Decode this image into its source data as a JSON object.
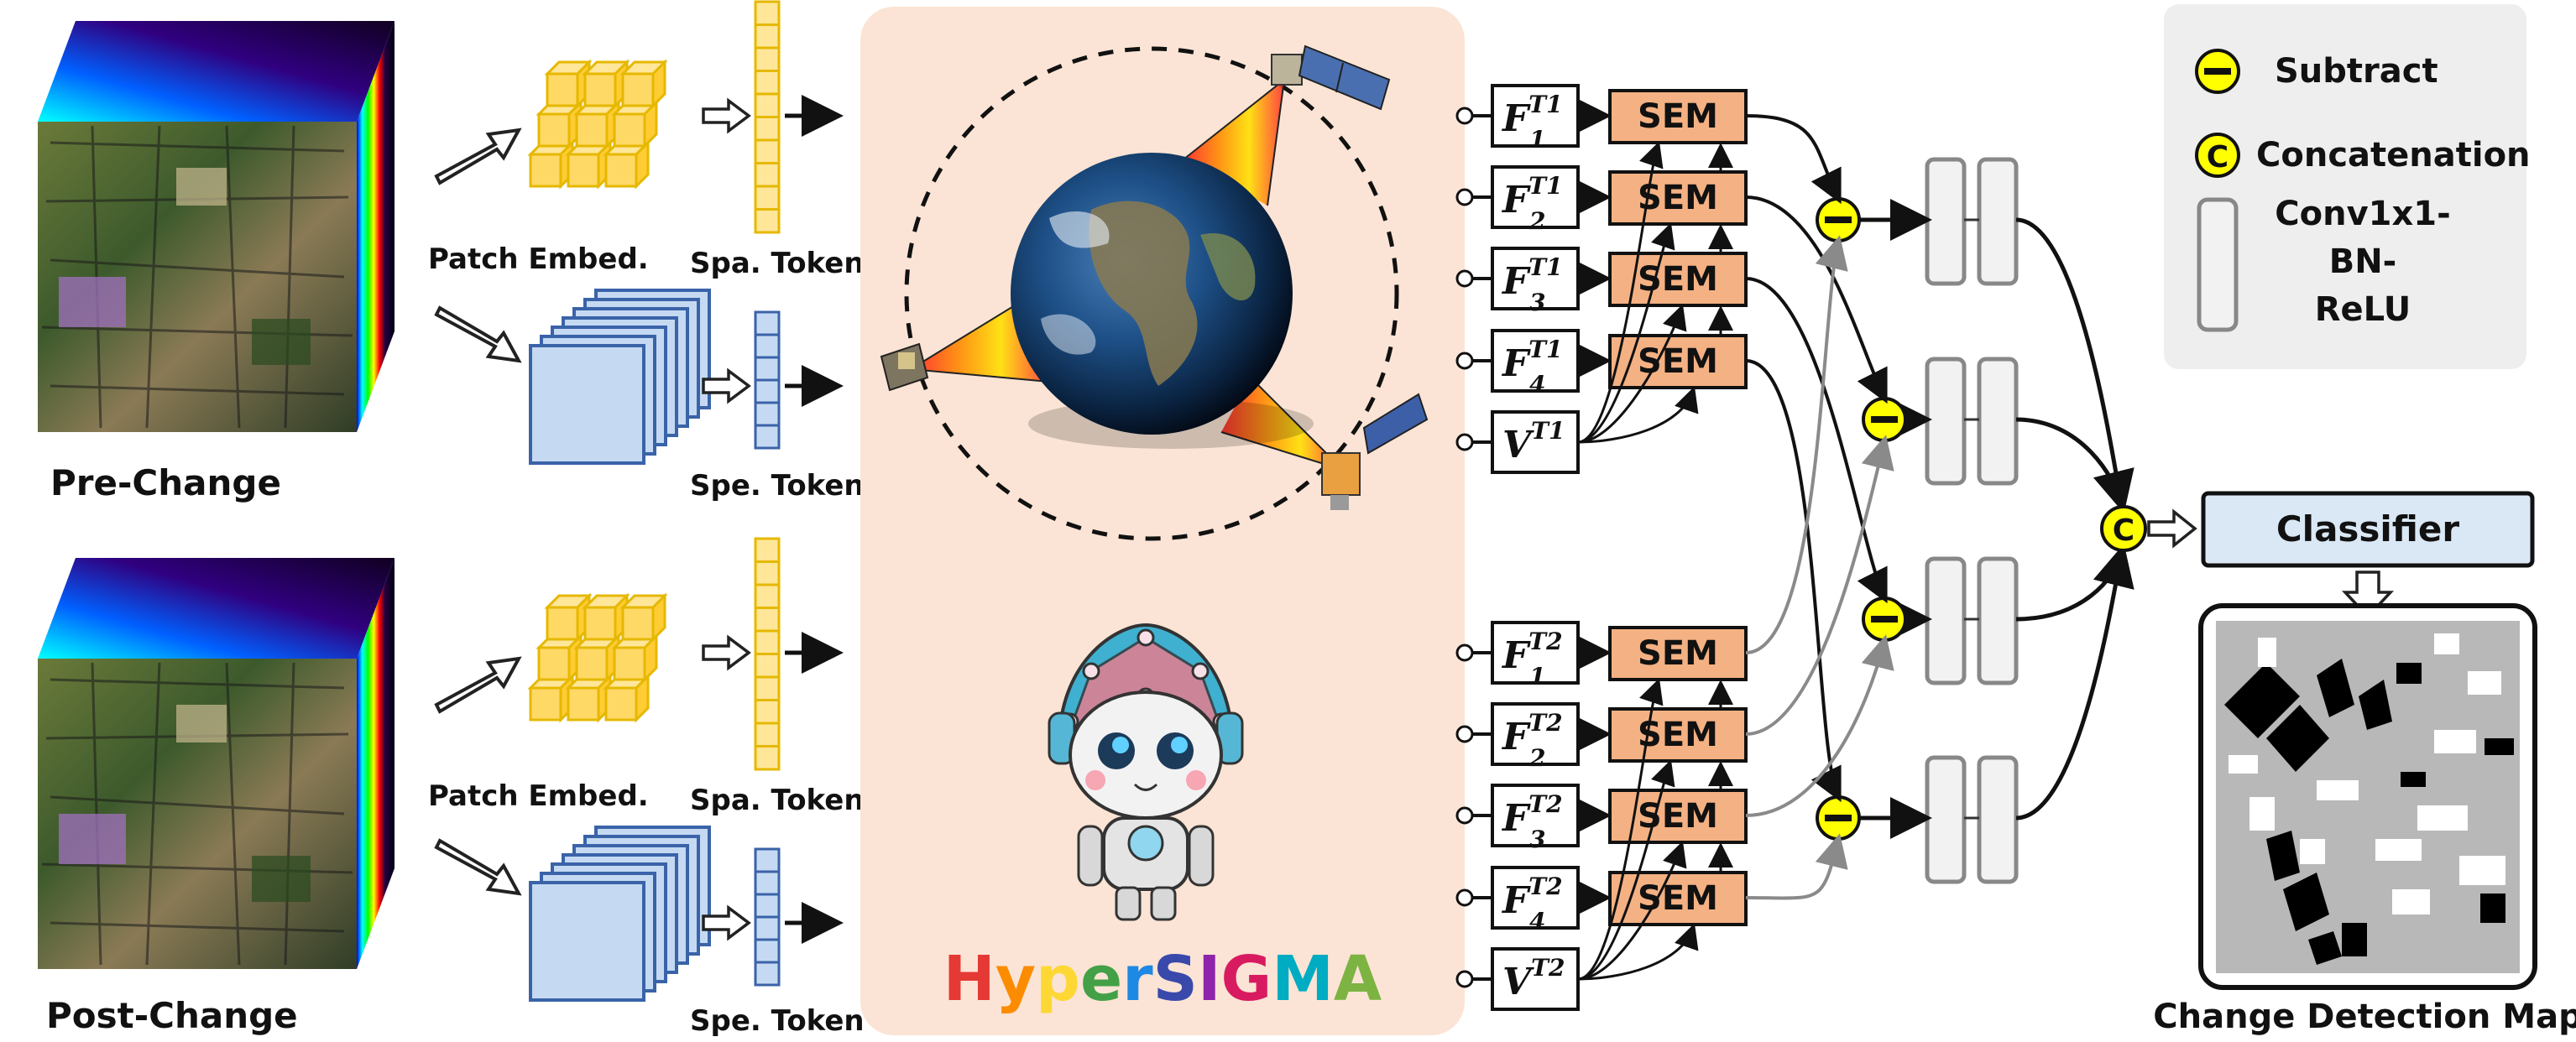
{
  "inputs": {
    "pre_label": "Pre-Change",
    "post_label": "Post-Change"
  },
  "embed": {
    "patch_embed_label": "Patch Embed.",
    "spa_token_label": "Spa. Token",
    "spe_token_label": "Spe. Token"
  },
  "model": {
    "name": "HyperSIGMA",
    "name_letter_colors": [
      "#e53935",
      "#fb8c00",
      "#fdd835",
      "#43a047",
      "#1e88e5",
      "#3949ab",
      "#8e24aa",
      "#d81b60",
      "#00acc1",
      "#7cb342"
    ]
  },
  "features": {
    "t1": [
      {
        "base": "F",
        "sub": "1",
        "sup": "T1"
      },
      {
        "base": "F",
        "sub": "2",
        "sup": "T1"
      },
      {
        "base": "F",
        "sub": "3",
        "sup": "T1"
      },
      {
        "base": "F",
        "sub": "4",
        "sup": "T1"
      },
      {
        "base": "V",
        "sub": "",
        "sup": "T1"
      }
    ],
    "t2": [
      {
        "base": "F",
        "sub": "1",
        "sup": "T2"
      },
      {
        "base": "F",
        "sub": "2",
        "sup": "T2"
      },
      {
        "base": "F",
        "sub": "3",
        "sup": "T2"
      },
      {
        "base": "F",
        "sub": "4",
        "sup": "T2"
      },
      {
        "base": "V",
        "sub": "",
        "sup": "T2"
      }
    ]
  },
  "sem_label": "SEM",
  "legend": {
    "subtract_symbol": "−",
    "subtract_label": "Subtract",
    "concat_symbol": "C",
    "concat_label": "Concatenation",
    "conv_line1": "Conv1x1-",
    "conv_line2": "BN-",
    "conv_line3": "ReLU"
  },
  "head": {
    "classifier_label": "Classifier",
    "output_label": "Change Detection Map"
  },
  "colors": {
    "sem_fill": "#f4b183",
    "backbone_bg": "#fbe4d5",
    "patch_yellow": "#ffd966",
    "spectral_blue": "#c5daf2",
    "operator_yellow": "#ffff00",
    "legend_bg": "#eeeeee",
    "classifier_fill": "#dae8f5"
  }
}
